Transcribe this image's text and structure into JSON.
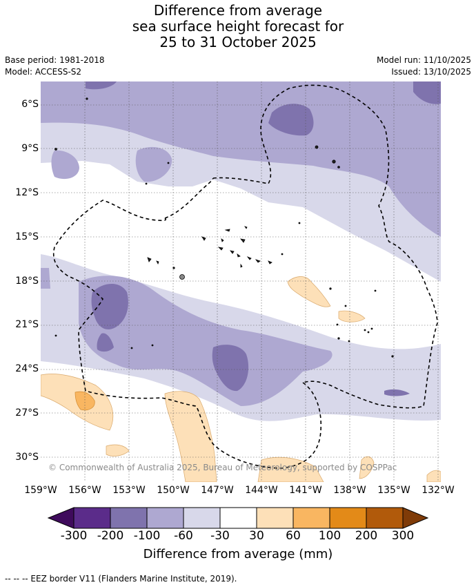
{
  "header": {
    "title_lines": [
      "Difference from average",
      "sea surface height forecast for",
      "25 to 31 October 2025"
    ],
    "base_period": "Base period: 1981-2018",
    "model": "Model: ACCESS-S2",
    "model_run": "Model run: 11/10/2025",
    "issued": "Issued: 13/10/2025"
  },
  "map": {
    "lat_labels": [
      "6°S",
      "9°S",
      "12°S",
      "15°S",
      "18°S",
      "21°S",
      "24°S",
      "27°S",
      "30°S"
    ],
    "lon_labels": [
      "159°W",
      "156°W",
      "153°W",
      "150°W",
      "147°W",
      "144°W",
      "141°W",
      "138°W",
      "135°W",
      "132°W"
    ],
    "copyright": "© Commonwealth of Australia 2025, Bureau of Meteorology, supported by COSPPac"
  },
  "colorbar": {
    "title": "Difference from average (mm)",
    "ticks": [
      "-300",
      "-200",
      "-100",
      "-60",
      "-30",
      "30",
      "60",
      "100",
      "200",
      "300"
    ],
    "colors": [
      "#3f0b5c",
      "#5b2c8a",
      "#7f73ad",
      "#aea8d1",
      "#d8d8ea",
      "#ffffff",
      "#fde0b8",
      "#f9b661",
      "#e38a18",
      "#b15a0b",
      "#7f3b08"
    ]
  },
  "legend": {
    "eez": "-- -- -- EEZ border V11 (Flanders Marine Institute, 2019)."
  }
}
